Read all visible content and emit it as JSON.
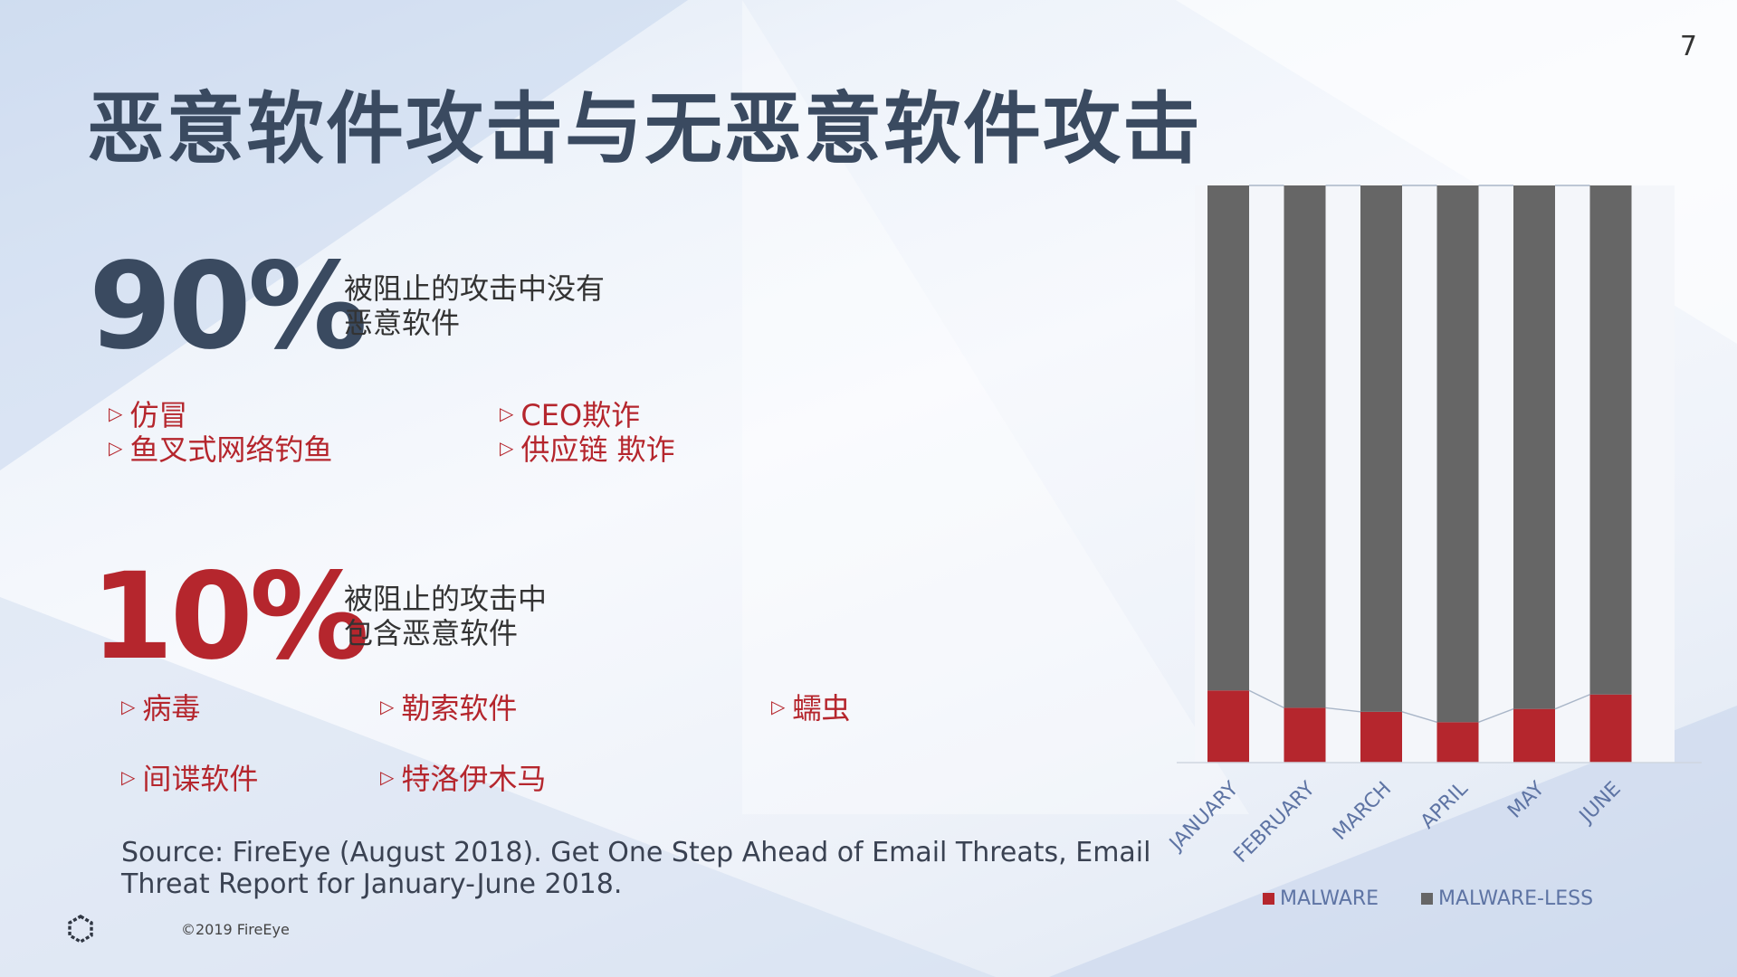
{
  "page_number": "7",
  "title": "恶意软件攻击与无恶意软件攻击",
  "stat_malware_less": {
    "value": "90%",
    "line1": "被阻止的攻击中没有",
    "line2": "恶意软件",
    "items": [
      "仿冒",
      "鱼叉式网络钓鱼",
      "CEO欺诈",
      "供应链 欺诈"
    ]
  },
  "stat_malware": {
    "value": "10%",
    "line1": "被阻止的攻击中",
    "line2": "包含恶意软件",
    "items": [
      "病毒",
      "勒索软件",
      "蠕虫",
      "间谍软件",
      "特洛伊木马"
    ]
  },
  "source": {
    "line1": "Source: FireEye (August 2018). Get One Step Ahead of Email Threats, Email",
    "line2": "Threat Report for January-June 2018."
  },
  "copyright": "©2019 FireEye",
  "colors": {
    "malware": "#b5262d",
    "malware_less": "#666666",
    "title": "#3a4a60"
  },
  "chart_data": {
    "type": "bar",
    "stacked": true,
    "categories": [
      "JANUARY",
      "FEBRUARY",
      "MARCH",
      "APRIL",
      "MAY",
      "JUNE"
    ],
    "series": [
      {
        "name": "MALWARE",
        "values": [
          12.5,
          9.5,
          8.8,
          7.0,
          9.3,
          11.8
        ]
      },
      {
        "name": "MALWARE-LESS",
        "values": [
          87.5,
          90.5,
          91.2,
          93.0,
          90.7,
          88.2
        ]
      }
    ],
    "ylim": [
      0,
      100
    ],
    "grid": false,
    "legend": "bottom",
    "series_lines": true
  }
}
